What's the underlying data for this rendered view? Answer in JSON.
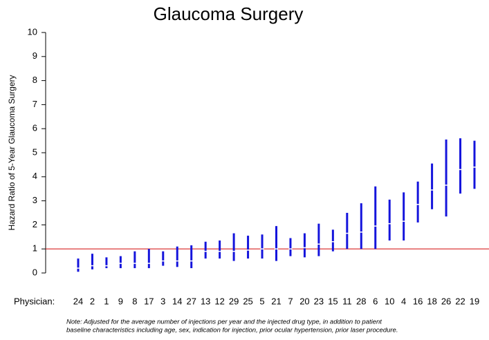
{
  "chart_data": {
    "type": "errorbar",
    "title": "Glaucoma Surgery",
    "y_label": "Hazard Ratio of 5-Year Glaucoma Surgery",
    "x_label": "Physician:",
    "categories": [
      "24",
      "2",
      "1",
      "9",
      "8",
      "17",
      "3",
      "14",
      "27",
      "13",
      "12",
      "29",
      "25",
      "5",
      "21",
      "7",
      "20",
      "23",
      "15",
      "11",
      "28",
      "6",
      "10",
      "4",
      "16",
      "18",
      "26",
      "22",
      "19"
    ],
    "values": [
      0.2,
      0.3,
      0.3,
      0.4,
      0.4,
      0.4,
      0.5,
      0.5,
      0.5,
      0.9,
      0.9,
      0.9,
      0.95,
      1.0,
      1.0,
      1.0,
      1.05,
      1.2,
      1.3,
      1.65,
      1.7,
      1.95,
      2.05,
      2.15,
      2.85,
      3.45,
      3.65,
      4.3,
      4.4
    ],
    "lower": [
      0.05,
      0.15,
      0.2,
      0.2,
      0.2,
      0.2,
      0.3,
      0.25,
      0.2,
      0.6,
      0.6,
      0.5,
      0.6,
      0.6,
      0.5,
      0.7,
      0.65,
      0.7,
      0.9,
      1.0,
      1.0,
      1.0,
      1.35,
      1.35,
      2.1,
      2.65,
      2.35,
      3.3,
      3.5
    ],
    "upper": [
      0.6,
      0.8,
      0.65,
      0.7,
      0.9,
      1.0,
      0.9,
      1.1,
      1.15,
      1.3,
      1.35,
      1.65,
      1.55,
      1.6,
      1.95,
      1.45,
      1.65,
      2.05,
      1.8,
      2.5,
      2.9,
      3.6,
      3.05,
      3.35,
      3.8,
      4.55,
      5.55,
      5.6,
      5.5
    ],
    "color": "#1414dc",
    "reference_line": 1,
    "reference_color": "#d62020",
    "ylim": [
      0,
      10
    ],
    "yticks": [
      0,
      1,
      2,
      3,
      4,
      5,
      6,
      7,
      8,
      9,
      10
    ],
    "note": [
      "Note: Adjusted for the average number of injections per year and the injected drug type, in addition to patient",
      "baseline characteristics including age, sex, indication for injection, prior ocular hypertension, prior laser procedure."
    ]
  }
}
